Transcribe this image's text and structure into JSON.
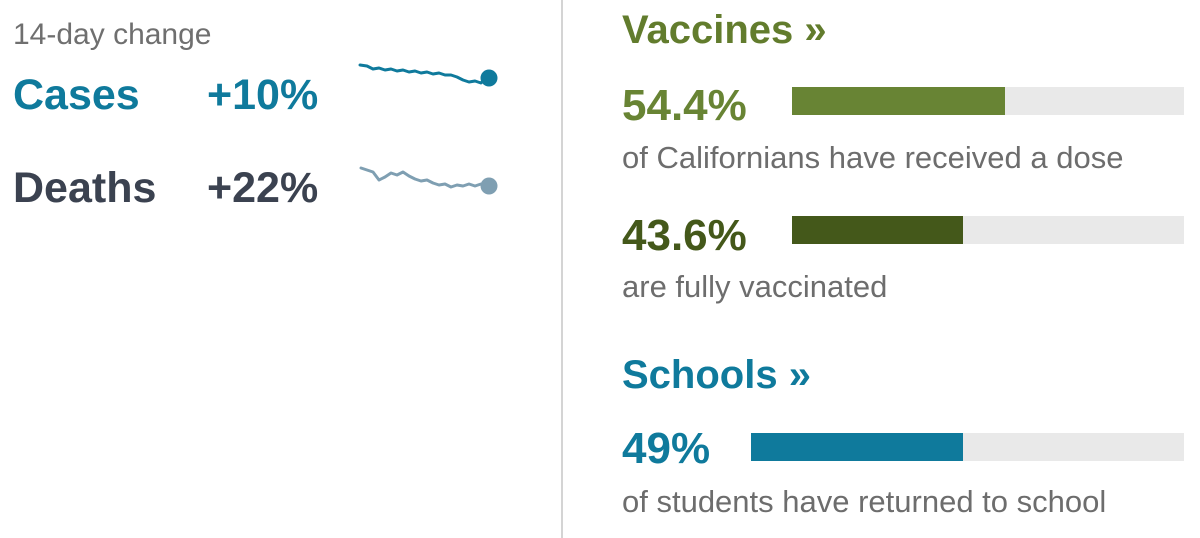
{
  "colors": {
    "cases": "#0f7a9c",
    "deaths": "#3b4250",
    "deaths_spark": "#7f9fb2",
    "vaccines": "#627c2d",
    "dose_bar": "#688434",
    "fully_bar": "#44581a",
    "schools": "#0f7a9c",
    "bar_track": "#e9e9e9"
  },
  "trend": {
    "label": "14-day change",
    "cases": {
      "name": "Cases",
      "change": "+10%"
    },
    "deaths": {
      "name": "Deaths",
      "change": "+22%"
    }
  },
  "vaccines": {
    "title": "Vaccines »",
    "dose": {
      "pct_text": "54.4%",
      "value": 54.4,
      "desc": "of Californians have received a dose"
    },
    "fully": {
      "pct_text": "43.6%",
      "value": 43.6,
      "desc": "are fully vaccinated"
    }
  },
  "schools": {
    "title": "Schools »",
    "returned": {
      "pct_text": "49%",
      "value": 49,
      "desc": "of students have returned to school"
    }
  }
}
